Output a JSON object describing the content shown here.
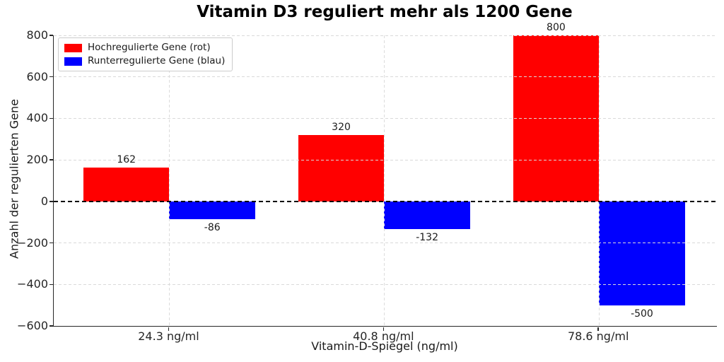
{
  "chart_data": {
    "type": "bar",
    "title": "Vitamin D3 reguliert mehr als 1200 Gene",
    "xlabel": "Vitamin-D-Spiegel (ng/ml)",
    "ylabel": "Anzahl der regulierten Gene",
    "categories": [
      "24.3 ng/ml",
      "40.8 ng/ml",
      "78.6 ng/ml"
    ],
    "series": [
      {
        "name": "Hochregulierte Gene (rot)",
        "color": "#ff0000",
        "values": [
          162,
          320,
          800
        ]
      },
      {
        "name": "Runterregulierte Gene (blau)",
        "color": "#0000ff",
        "values": [
          -86,
          -132,
          -500
        ]
      }
    ],
    "bar_value_labels": [
      [
        "162",
        "320",
        "800"
      ],
      [
        "-86",
        "-132",
        "-500"
      ]
    ],
    "ylim": [
      -600,
      800
    ],
    "yticks": [
      800,
      600,
      400,
      200,
      0,
      -200,
      -400,
      -600
    ],
    "ytick_labels": [
      "800",
      "600",
      "400",
      "200",
      "0",
      "−200",
      "−400",
      "−600"
    ],
    "grid": true,
    "gridline_style": "dashed",
    "zero_line": "black dashed",
    "legend_position": "upper left"
  }
}
